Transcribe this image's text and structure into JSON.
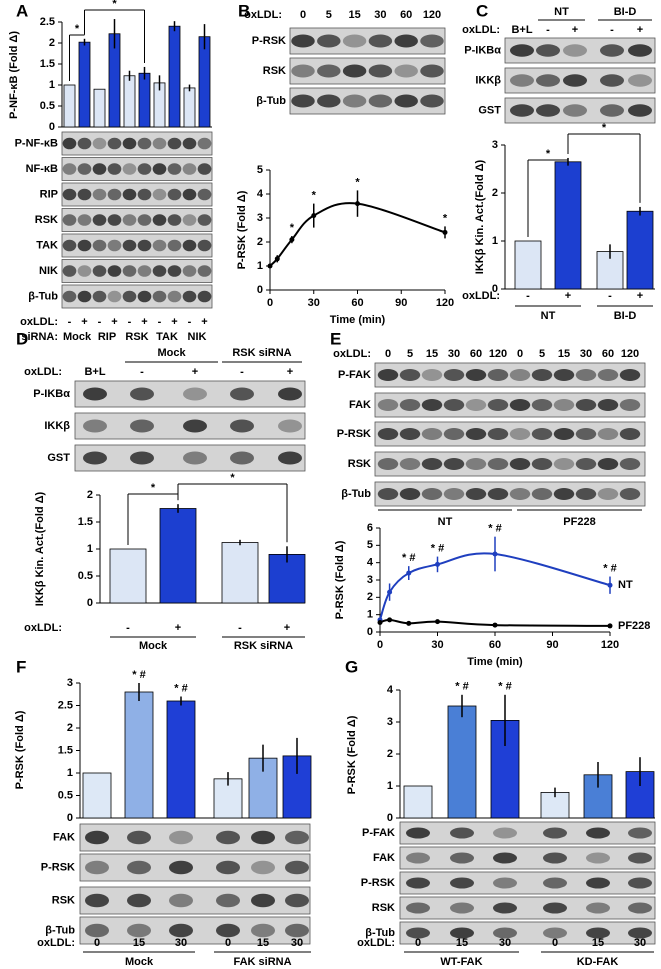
{
  "panels": [
    "A",
    "B",
    "C",
    "D",
    "E",
    "F",
    "G"
  ],
  "blots": {
    "A": {
      "rows": [
        "P-NF-κB",
        "NF-κB",
        "RIP",
        "RSK",
        "TAK",
        "NIK",
        "β-Tub"
      ]
    },
    "B": {
      "lane_label": "oxLDL:",
      "lanes": [
        "0",
        "5",
        "15",
        "30",
        "60",
        "120"
      ],
      "rows": [
        "P-RSK",
        "RSK",
        "β-Tub"
      ]
    },
    "C": {
      "lane_label": "oxLDL:",
      "lanes": [
        "B+L",
        "-",
        "+",
        "-",
        "+"
      ],
      "groups": [
        "NT",
        "BI-D"
      ],
      "rows": [
        "P-IKBα",
        "IKKβ",
        "GST"
      ]
    },
    "D": {
      "lane_label": "oxLDL:",
      "lanes": [
        "B+L",
        "-",
        "+",
        "-",
        "+"
      ],
      "groups": [
        "Mock",
        "RSK siRNA"
      ],
      "rows": [
        "P-IKBα",
        "IKKβ",
        "GST"
      ]
    },
    "E": {
      "lane_label": "oxLDL:",
      "lanes": [
        "0",
        "5",
        "15",
        "30",
        "60",
        "120",
        "0",
        "5",
        "15",
        "30",
        "60",
        "120"
      ],
      "groups": [
        "NT",
        "PF228"
      ],
      "rows": [
        "P-FAK",
        "FAK",
        "P-RSK",
        "RSK",
        "β-Tub"
      ]
    },
    "F": {
      "rows": [
        "FAK",
        "P-RSK",
        "RSK",
        "β-Tub"
      ]
    },
    "G": {
      "rows": [
        "P-FAK",
        "FAK",
        "P-RSK",
        "RSK",
        "β-Tub"
      ]
    }
  },
  "chart_data": [
    {
      "type": "bar",
      "ylabel": "P-NF-κB (Fold Δ)",
      "ylim": [
        0,
        2.5
      ],
      "yticks": [
        0,
        0.5,
        1,
        1.5,
        2,
        2.5
      ],
      "category_label": "oxLDL:",
      "categories": [
        "-",
        "+",
        "-",
        "+",
        "-",
        "+",
        "-",
        "+",
        "-",
        "+"
      ],
      "group_label": "siRNA:",
      "groups": [
        "Mock",
        "RIP",
        "RSK",
        "TAK",
        "NIK"
      ],
      "values": [
        1,
        2.02,
        0.9,
        2.22,
        1.22,
        1.28,
        1.05,
        2.4,
        0.93,
        2.15
      ],
      "errors": [
        0,
        0.08,
        0,
        0.35,
        0.12,
        0.15,
        0.18,
        0.12,
        0.08,
        0.3
      ],
      "bar_colors": [
        "#dce6f5",
        "#1c3fd0",
        "#dce6f5",
        "#1c3fd0",
        "#dce6f5",
        "#1c3fd0",
        "#dce6f5",
        "#1c3fd0",
        "#dce6f5",
        "#1c3fd0"
      ],
      "annotations": [
        "*",
        "*"
      ]
    },
    {
      "type": "line",
      "ylabel": "P-RSK (Fold Δ)",
      "xlabel": "Time (min)",
      "x": [
        0,
        5,
        15,
        30,
        60,
        120
      ],
      "xlim": [
        0,
        120
      ],
      "xticks": [
        0,
        30,
        60,
        90,
        120
      ],
      "ylim": [
        0,
        5
      ],
      "yticks": [
        0,
        1,
        2,
        3,
        4,
        5
      ],
      "series": [
        {
          "color": "#000000",
          "values": [
            1,
            1.3,
            2.1,
            3.1,
            3.6,
            2.4
          ],
          "errors": [
            0.05,
            0.15,
            0.15,
            0.5,
            0.55,
            0.25
          ],
          "significance": [
            null,
            null,
            "*",
            "*",
            "*",
            "*"
          ]
        }
      ]
    },
    {
      "type": "bar",
      "ylabel": "IKKβ Kin. Act.(Fold Δ)",
      "ylim": [
        0,
        3
      ],
      "yticks": [
        0,
        1,
        2,
        3
      ],
      "category_label": "oxLDL:",
      "categories": [
        "-",
        "+",
        "-",
        "+"
      ],
      "groups": [
        "NT",
        "BI-D"
      ],
      "values": [
        1,
        2.65,
        0.78,
        1.62
      ],
      "errors": [
        0,
        0.08,
        0.15,
        0.09
      ],
      "bar_colors": [
        "#dce6f5",
        "#1c3fd0",
        "#dce6f5",
        "#1c3fd0"
      ],
      "annotations": [
        "*",
        "*"
      ]
    },
    {
      "type": "bar",
      "ylabel": "IKKβ Kin. Act.(Fold Δ)",
      "ylim": [
        0,
        2
      ],
      "yticks": [
        0,
        0.5,
        1,
        1.5,
        2
      ],
      "category_label": "oxLDL:",
      "categories": [
        "-",
        "+",
        "-",
        "+"
      ],
      "groups": [
        "Mock",
        "RSK  siRNA"
      ],
      "values": [
        1,
        1.75,
        1.12,
        0.9
      ],
      "errors": [
        0,
        0.08,
        0.05,
        0.15
      ],
      "bar_colors": [
        "#dce6f5",
        "#1c3fd0",
        "#dce6f5",
        "#1c3fd0"
      ],
      "annotations": [
        "*",
        "*"
      ]
    },
    {
      "type": "line",
      "ylabel": "P-RSK (Fold Δ)",
      "xlabel": "Time (min)",
      "x": [
        0,
        5,
        15,
        30,
        60,
        120
      ],
      "xlim": [
        0,
        120
      ],
      "xticks": [
        0,
        30,
        60,
        90,
        120
      ],
      "ylim": [
        0,
        6
      ],
      "yticks": [
        0,
        1,
        2,
        3,
        4,
        5,
        6
      ],
      "series": [
        {
          "name": "NT",
          "color": "#1f3fbf",
          "values": [
            0.7,
            2.3,
            3.4,
            3.9,
            4.5,
            2.7
          ],
          "errors": [
            0.1,
            0.5,
            0.4,
            0.45,
            1,
            0.5
          ],
          "significance": [
            null,
            null,
            "* #",
            "* #",
            "* #",
            "* #"
          ]
        },
        {
          "name": "PF228",
          "color": "#000000",
          "values": [
            0.55,
            0.7,
            0.5,
            0.6,
            0.4,
            0.35
          ],
          "errors": [
            0.05,
            0.05,
            0.05,
            0.05,
            0.03,
            0.03
          ]
        }
      ]
    },
    {
      "type": "bar",
      "ylabel": "P-RSK (Fold Δ)",
      "ylim": [
        0,
        3
      ],
      "yticks": [
        0,
        0.5,
        1,
        1.5,
        2,
        2.5,
        3
      ],
      "category_label": "oxLDL:",
      "categories": [
        "0",
        "15",
        "30",
        "0",
        "15",
        "30"
      ],
      "groups": [
        "Mock",
        "FAK siRNA"
      ],
      "values": [
        1,
        2.8,
        2.6,
        0.87,
        1.33,
        1.38
      ],
      "errors": [
        0,
        0.2,
        0.1,
        0.15,
        0.3,
        0.4
      ],
      "bar_colors": [
        "#dde8f6",
        "#8fb0e6",
        "#1f3fd6",
        "#dde8f6",
        "#8fb0e6",
        "#1f3fd6"
      ],
      "significance": [
        null,
        "* #",
        "* #",
        null,
        null,
        null
      ]
    },
    {
      "type": "bar",
      "ylabel": "P-RSK (Fold Δ)",
      "ylim": [
        0,
        4
      ],
      "yticks": [
        0,
        1,
        2,
        3,
        4
      ],
      "category_label": "oxLDL:",
      "categories": [
        "0",
        "15",
        "30",
        "0",
        "15",
        "30"
      ],
      "groups": [
        "WT-FAK",
        "KD-FAK"
      ],
      "values": [
        1,
        3.5,
        3.05,
        0.8,
        1.35,
        1.45
      ],
      "errors": [
        0,
        0.35,
        0.8,
        0.15,
        0.4,
        0.45
      ],
      "bar_colors": [
        "#dde8f6",
        "#4a7fd6",
        "#1f3fd6",
        "#dde8f6",
        "#4a7fd6",
        "#1f3fd6"
      ],
      "significance": [
        null,
        "* #",
        "* #",
        null,
        null,
        null
      ]
    }
  ]
}
